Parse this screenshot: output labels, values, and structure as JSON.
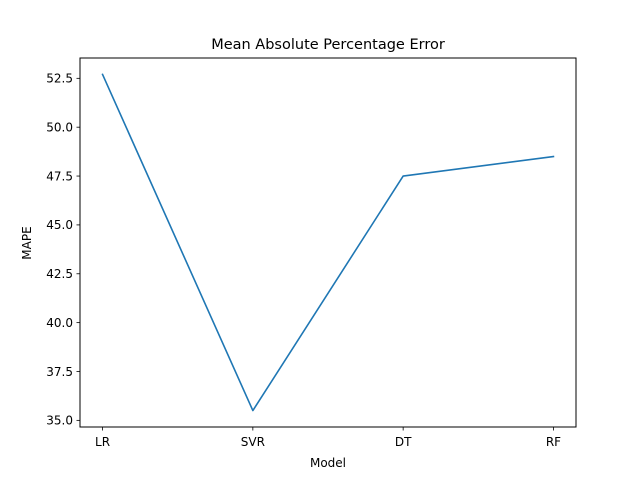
{
  "chart_data": {
    "type": "line",
    "title": "Mean Absolute Percentage Error",
    "xlabel": "Model",
    "ylabel": "MAPE",
    "categories": [
      "LR",
      "SVR",
      "DT",
      "RF"
    ],
    "series": [
      {
        "values": [
          52.7,
          35.5,
          47.5,
          48.5
        ],
        "color": "#1f77b4"
      }
    ],
    "ylim": [
      34.66,
      53.54
    ],
    "yticks": [
      35.0,
      37.5,
      40.0,
      42.5,
      45.0,
      47.5,
      50.0,
      52.5
    ],
    "ytick_labels": [
      "35.0",
      "37.5",
      "40.0",
      "42.5",
      "45.0",
      "47.5",
      "50.0",
      "52.5"
    ],
    "grid": false,
    "legend": "none"
  }
}
